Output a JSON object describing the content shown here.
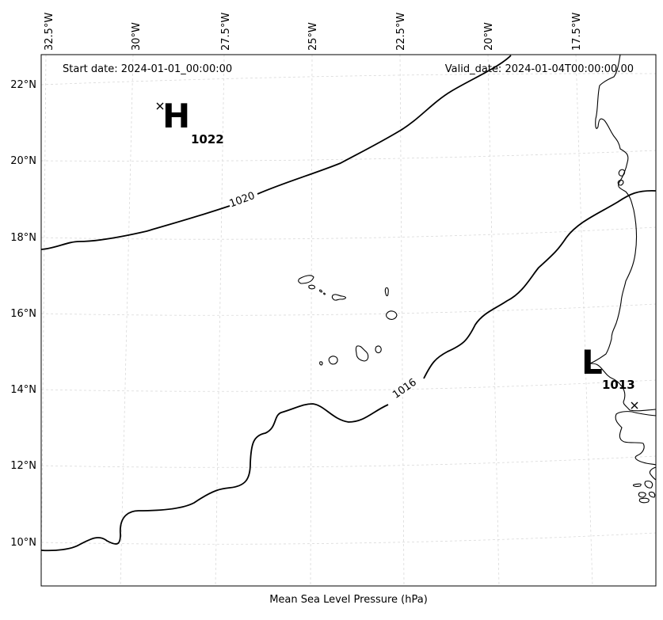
{
  "header": {
    "start_date": "Start date: 2024-01-01_00:00:00",
    "valid_date": "Valid_date: 2024-01-04T00:00:00.00"
  },
  "footer": {
    "xlabel": "Mean Sea Level Pressure (hPa)"
  },
  "lon_ticks": [
    "32.5°W",
    "30°W",
    "27.5°W",
    "25°W",
    "22.5°W",
    "20°W",
    "17.5°W"
  ],
  "lat_ticks": [
    "22°N",
    "20°N",
    "18°N",
    "16°N",
    "14°N",
    "12°N",
    "10°N"
  ],
  "pressure_systems": [
    {
      "id": "high",
      "letter": "H",
      "value": "1022"
    },
    {
      "id": "low",
      "letter": "L",
      "value": "1013"
    }
  ],
  "isobars": [
    {
      "id": "isobar-1020",
      "label": "1020"
    },
    {
      "id": "isobar-1016",
      "label": "1016"
    }
  ],
  "colors": {
    "isobar": "#000000",
    "grid": "#d9d9d9",
    "coast": "#000000"
  }
}
